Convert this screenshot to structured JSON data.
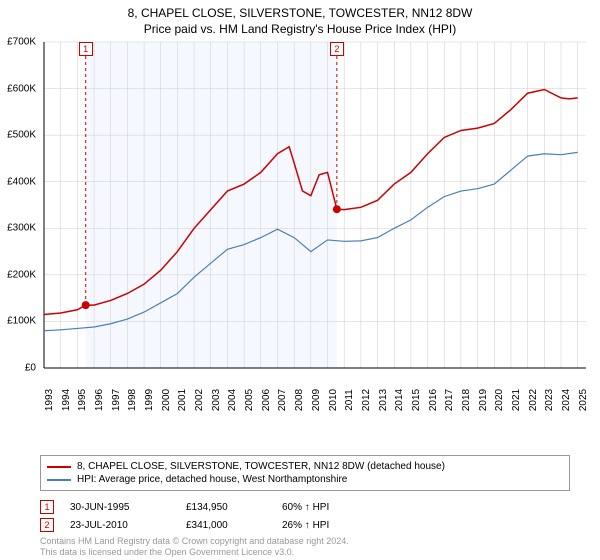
{
  "title_line1": "8, CHAPEL CLOSE, SILVERSTONE, TOWCESTER, NN12 8DW",
  "title_line2": "Price paid vs. HM Land Registry's House Price Index (HPI)",
  "chart": {
    "type": "line",
    "background_color": "#ffffff",
    "plot_bg_light": "#f5f9ff",
    "grid_color": "#cccccc",
    "axis_color": "#000000",
    "x_years": [
      1993,
      1994,
      1995,
      1996,
      1997,
      1998,
      1999,
      2000,
      2001,
      2002,
      2003,
      2004,
      2005,
      2006,
      2007,
      2008,
      2009,
      2010,
      2011,
      2012,
      2013,
      2014,
      2015,
      2016,
      2017,
      2018,
      2019,
      2020,
      2021,
      2022,
      2023,
      2024,
      2025
    ],
    "y_ticks": [
      0,
      100000,
      200000,
      300000,
      400000,
      500000,
      600000,
      700000
    ],
    "y_tick_labels": [
      "£0",
      "£100K",
      "£200K",
      "£300K",
      "£400K",
      "£500K",
      "£600K",
      "£700K"
    ],
    "ylim": [
      0,
      700000
    ],
    "xlim": [
      1993,
      2025.5
    ],
    "label_fontsize": 10,
    "series": [
      {
        "name": "price_paid",
        "color": "#cc0000",
        "line_width": 1.5,
        "data": [
          [
            1993,
            115000
          ],
          [
            1994,
            118000
          ],
          [
            1995,
            125000
          ],
          [
            1995.5,
            135000
          ],
          [
            1996,
            135000
          ],
          [
            1997,
            145000
          ],
          [
            1998,
            160000
          ],
          [
            1999,
            180000
          ],
          [
            2000,
            210000
          ],
          [
            2001,
            250000
          ],
          [
            2002,
            300000
          ],
          [
            2003,
            340000
          ],
          [
            2004,
            380000
          ],
          [
            2005,
            395000
          ],
          [
            2006,
            420000
          ],
          [
            2007,
            460000
          ],
          [
            2007.7,
            475000
          ],
          [
            2008,
            440000
          ],
          [
            2008.5,
            380000
          ],
          [
            2009,
            370000
          ],
          [
            2009.5,
            415000
          ],
          [
            2010,
            420000
          ],
          [
            2010.56,
            341000
          ],
          [
            2011,
            340000
          ],
          [
            2012,
            345000
          ],
          [
            2013,
            360000
          ],
          [
            2014,
            395000
          ],
          [
            2015,
            420000
          ],
          [
            2016,
            460000
          ],
          [
            2017,
            495000
          ],
          [
            2018,
            510000
          ],
          [
            2019,
            515000
          ],
          [
            2020,
            525000
          ],
          [
            2021,
            555000
          ],
          [
            2022,
            590000
          ],
          [
            2023,
            598000
          ],
          [
            2024,
            580000
          ],
          [
            2024.5,
            578000
          ],
          [
            2025,
            580000
          ]
        ]
      },
      {
        "name": "hpi",
        "color": "#4a7ebb",
        "line_width": 1.2,
        "data": [
          [
            1993,
            80000
          ],
          [
            1994,
            82000
          ],
          [
            1995,
            85000
          ],
          [
            1996,
            88000
          ],
          [
            1997,
            95000
          ],
          [
            1998,
            105000
          ],
          [
            1999,
            120000
          ],
          [
            2000,
            140000
          ],
          [
            2001,
            160000
          ],
          [
            2002,
            195000
          ],
          [
            2003,
            225000
          ],
          [
            2004,
            255000
          ],
          [
            2005,
            265000
          ],
          [
            2006,
            280000
          ],
          [
            2007,
            298000
          ],
          [
            2008,
            280000
          ],
          [
            2009,
            250000
          ],
          [
            2010,
            275000
          ],
          [
            2011,
            272000
          ],
          [
            2012,
            273000
          ],
          [
            2013,
            280000
          ],
          [
            2014,
            300000
          ],
          [
            2015,
            318000
          ],
          [
            2016,
            345000
          ],
          [
            2017,
            368000
          ],
          [
            2018,
            380000
          ],
          [
            2019,
            385000
          ],
          [
            2020,
            395000
          ],
          [
            2021,
            425000
          ],
          [
            2022,
            455000
          ],
          [
            2023,
            460000
          ],
          [
            2024,
            458000
          ],
          [
            2025,
            463000
          ]
        ]
      }
    ],
    "sale_markers": [
      {
        "n": "1",
        "x": 1995.5,
        "y": 135000,
        "top_y": 700000,
        "color": "#cc0000"
      },
      {
        "n": "2",
        "x": 2010.56,
        "y": 341000,
        "top_y": 700000,
        "color": "#cc0000"
      }
    ]
  },
  "legend": {
    "items": [
      {
        "color": "#cc0000",
        "label": "8, CHAPEL CLOSE, SILVERSTONE, TOWCESTER, NN12 8DW (detached house)"
      },
      {
        "color": "#4a7ebb",
        "label": "HPI: Average price, detached house, West Northamptonshire"
      }
    ]
  },
  "sales": [
    {
      "n": "1",
      "date": "30-JUN-1995",
      "price": "£134,950",
      "hpi": "60% ↑ HPI",
      "marker_color": "#cc0000"
    },
    {
      "n": "2",
      "date": "23-JUL-2010",
      "price": "£341,000",
      "hpi": "26% ↑ HPI",
      "marker_color": "#cc0000"
    }
  ],
  "footer": {
    "line1": "Contains HM Land Registry data © Crown copyright and database right 2024.",
    "line2": "This data is licensed under the Open Government Licence v3.0."
  }
}
